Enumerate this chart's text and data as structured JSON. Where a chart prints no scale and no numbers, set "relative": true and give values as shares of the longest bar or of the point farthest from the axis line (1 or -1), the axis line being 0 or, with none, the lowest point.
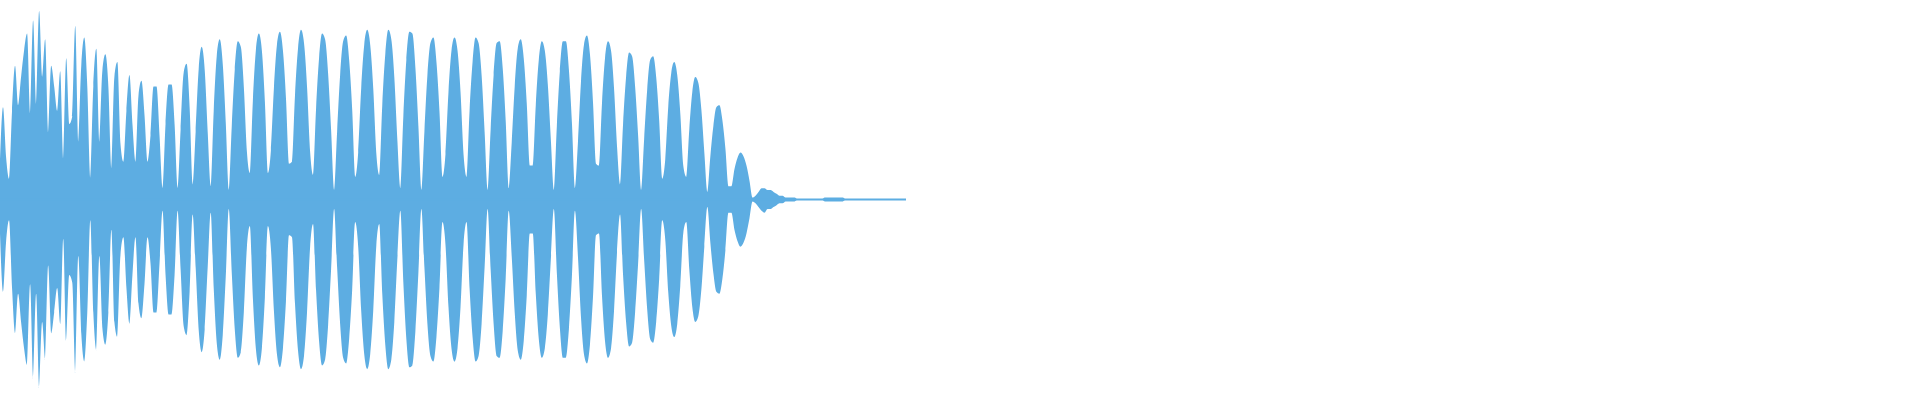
{
  "chart_data": {
    "type": "area",
    "relative": true,
    "categories": [
      null,
      null,
      null,
      null,
      null,
      null,
      null,
      null,
      null,
      null,
      null,
      null,
      null,
      null,
      null,
      null,
      null,
      null,
      null,
      null,
      null,
      null,
      null,
      null,
      null,
      null,
      null,
      null,
      null,
      null,
      null,
      null,
      null,
      null,
      null,
      null,
      null,
      null,
      null,
      null,
      null,
      null,
      null,
      null,
      null,
      null,
      null,
      null,
      null,
      null,
      null,
      null,
      null,
      null,
      null,
      null,
      null,
      null,
      null,
      null,
      null,
      null,
      null,
      null,
      null,
      null,
      null,
      null,
      null,
      null,
      null,
      null,
      null,
      null,
      null,
      null,
      null,
      null,
      null,
      null,
      null,
      null,
      null,
      null,
      null,
      null,
      null,
      null,
      null,
      null,
      null,
      null,
      null,
      null,
      null,
      null,
      null,
      null,
      null,
      null,
      null,
      null,
      null,
      null,
      null,
      null,
      null,
      null,
      null,
      null,
      null,
      null,
      null,
      null,
      null,
      null,
      null,
      null,
      null,
      null,
      null,
      null,
      null,
      null,
      null,
      null,
      null,
      null,
      null,
      null,
      null,
      null,
      null,
      null,
      null,
      null,
      null,
      null,
      null,
      null,
      null,
      null,
      null,
      null,
      null,
      null,
      null,
      null,
      null,
      null,
      null,
      null,
      null,
      null,
      null,
      null,
      null,
      null,
      null,
      null,
      null,
      null,
      null,
      null,
      null,
      null,
      null,
      null,
      null,
      null,
      null,
      null,
      null,
      null,
      null,
      null,
      null,
      null,
      null,
      null,
      null,
      null,
      null,
      null,
      null,
      null,
      null,
      null,
      null,
      null,
      null,
      null,
      null,
      null,
      null,
      null,
      null,
      null,
      null,
      null,
      null,
      null,
      null,
      null,
      null,
      null,
      null,
      null,
      null,
      null,
      null,
      null,
      null,
      null,
      null,
      null,
      null,
      null,
      null,
      null,
      null,
      null,
      null,
      null,
      null,
      null,
      null,
      null,
      null,
      null,
      null,
      null,
      null,
      null,
      null,
      null,
      null,
      null,
      null,
      null,
      null,
      null,
      null,
      null,
      null,
      null,
      null,
      null,
      null,
      null,
      null,
      null,
      null,
      null,
      null,
      null,
      null,
      null,
      null,
      null,
      null,
      null,
      null,
      null,
      null,
      null,
      null,
      null,
      null,
      null,
      null,
      null,
      null,
      null,
      null,
      null,
      null,
      null,
      null,
      null,
      null,
      null,
      null,
      null,
      null,
      null,
      null,
      null,
      null,
      null,
      null,
      null,
      null,
      null,
      null,
      null,
      null,
      null,
      null,
      null,
      null,
      null
    ],
    "series": [
      {
        "color": "#5dade2",
        "values": [
          0.18,
          0.49,
          0.23,
          0.11,
          0.47,
          0.71,
          0.5,
          0.65,
          0.79,
          0.88,
          0.45,
          0.95,
          0.5,
          1,
          0.65,
          0.85,
          0.35,
          0.71,
          0.6,
          0.47,
          0.68,
          0.21,
          0.75,
          0.4,
          0.44,
          0.92,
          0.3,
          0.71,
          0.86,
          0.6,
          0.11,
          0.6,
          0.8,
          0.3,
          0.68,
          0.77,
          0.6,
          0.16,
          0.65,
          0.73,
          0.3,
          0.2,
          0.47,
          0.66,
          0.4,
          0.2,
          0.55,
          0.63,
          0.45,
          0.2,
          0.34,
          0.6,
          0.6,
          0.34,
          0.06,
          0.4,
          0.61,
          0.61,
          0.4,
          0.06,
          0.37,
          0.67,
          0.72,
          0.49,
          0.08,
          0.36,
          0.69,
          0.81,
          0.69,
          0.36,
          0.07,
          0.47,
          0.76,
          0.85,
          0.72,
          0.41,
          0.05,
          0.39,
          0.69,
          0.84,
          0.81,
          0.6,
          0.26,
          0.14,
          0.52,
          0.79,
          0.88,
          0.79,
          0.52,
          0.14,
          0.26,
          0.59,
          0.82,
          0.89,
          0.79,
          0.54,
          0.19,
          0.2,
          0.55,
          0.8,
          0.9,
          0.83,
          0.6,
          0.26,
          0.13,
          0.48,
          0.75,
          0.88,
          0.85,
          0.67,
          0.37,
          0.05,
          0.36,
          0.66,
          0.84,
          0.87,
          0.74,
          0.48,
          0.12,
          0.25,
          0.59,
          0.82,
          0.9,
          0.82,
          0.59,
          0.25,
          0.13,
          0.5,
          0.77,
          0.9,
          0.85,
          0.65,
          0.32,
          0.06,
          0.44,
          0.74,
          0.89,
          0.88,
          0.7,
          0.39,
          0.05,
          0.36,
          0.66,
          0.83,
          0.86,
          0.73,
          0.47,
          0.12,
          0.24,
          0.57,
          0.79,
          0.86,
          0.79,
          0.57,
          0.24,
          0.12,
          0.47,
          0.73,
          0.86,
          0.83,
          0.66,
          0.36,
          0.05,
          0.37,
          0.66,
          0.83,
          0.84,
          0.7,
          0.42,
          0.06,
          0.3,
          0.6,
          0.8,
          0.85,
          0.75,
          0.51,
          0.18,
          0.18,
          0.5,
          0.74,
          0.84,
          0.79,
          0.61,
          0.32,
          0.05,
          0.39,
          0.68,
          0.84,
          0.84,
          0.69,
          0.41,
          0.06,
          0.3,
          0.62,
          0.82,
          0.87,
          0.77,
          0.52,
          0.19,
          0.18,
          0.51,
          0.75,
          0.84,
          0.79,
          0.59,
          0.28,
          0.08,
          0.4,
          0.65,
          0.78,
          0.76,
          0.6,
          0.34,
          0.05,
          0.32,
          0.58,
          0.74,
          0.76,
          0.65,
          0.42,
          0.11,
          0.21,
          0.49,
          0.67,
          0.73,
          0.66,
          0.46,
          0.18,
          0.12,
          0.37,
          0.57,
          0.65,
          0.62,
          0.48,
          0.25,
          0.04,
          0.23,
          0.39,
          0.49,
          0.5,
          0.42,
          0.27,
          0.07,
          0.07,
          0.16,
          0.22,
          0.25,
          0.23,
          0.18,
          0.1,
          0.01,
          0.02,
          0.04,
          0.06,
          0.06,
          0.05,
          0.05,
          0.04,
          0.03,
          0.02,
          0.02,
          0.01,
          0.01,
          0.01,
          0.01,
          0,
          0,
          0,
          0,
          0,
          0,
          0,
          0,
          0,
          0.01,
          0.01,
          0.01,
          0.01,
          0.01,
          0.01,
          0.01,
          0,
          0,
          0,
          0,
          0,
          0,
          0,
          0,
          0,
          0,
          0,
          0,
          0,
          0,
          0,
          0,
          0,
          0,
          0,
          0,
          0
        ]
      },
      {
        "color": "#5dade2",
        "values": [
          -0.18,
          -0.49,
          -0.23,
          -0.11,
          -0.47,
          -0.71,
          -0.5,
          -0.65,
          -0.79,
          -0.88,
          -0.45,
          -0.95,
          -0.5,
          -1,
          -0.65,
          -0.85,
          -0.35,
          -0.71,
          -0.6,
          -0.47,
          -0.66,
          -0.21,
          -0.75,
          -0.4,
          -0.44,
          -0.92,
          -0.3,
          -0.71,
          -0.86,
          -0.6,
          -0.11,
          -0.6,
          -0.8,
          -0.3,
          -0.68,
          -0.77,
          -0.6,
          -0.16,
          -0.65,
          -0.73,
          -0.3,
          -0.2,
          -0.47,
          -0.66,
          -0.4,
          -0.2,
          -0.55,
          -0.63,
          -0.45,
          -0.2,
          -0.34,
          -0.6,
          -0.6,
          -0.34,
          -0.06,
          -0.4,
          -0.61,
          -0.61,
          -0.4,
          -0.06,
          -0.37,
          -0.67,
          -0.72,
          -0.49,
          -0.08,
          -0.36,
          -0.69,
          -0.81,
          -0.69,
          -0.36,
          -0.07,
          -0.47,
          -0.76,
          -0.85,
          -0.72,
          -0.41,
          -0.05,
          -0.39,
          -0.69,
          -0.84,
          -0.81,
          -0.6,
          -0.26,
          -0.14,
          -0.52,
          -0.79,
          -0.88,
          -0.79,
          -0.52,
          -0.14,
          -0.26,
          -0.59,
          -0.82,
          -0.89,
          -0.79,
          -0.54,
          -0.19,
          -0.2,
          -0.55,
          -0.8,
          -0.9,
          -0.83,
          -0.6,
          -0.26,
          -0.13,
          -0.48,
          -0.75,
          -0.88,
          -0.85,
          -0.67,
          -0.37,
          -0.05,
          -0.36,
          -0.66,
          -0.84,
          -0.87,
          -0.74,
          -0.48,
          -0.12,
          -0.25,
          -0.59,
          -0.82,
          -0.9,
          -0.82,
          -0.59,
          -0.25,
          -0.13,
          -0.5,
          -0.77,
          -0.9,
          -0.85,
          -0.65,
          -0.32,
          -0.06,
          -0.44,
          -0.74,
          -0.89,
          -0.88,
          -0.7,
          -0.39,
          -0.05,
          -0.36,
          -0.66,
          -0.83,
          -0.86,
          -0.73,
          -0.47,
          -0.12,
          -0.24,
          -0.57,
          -0.79,
          -0.86,
          -0.79,
          -0.57,
          -0.24,
          -0.12,
          -0.47,
          -0.73,
          -0.86,
          -0.83,
          -0.66,
          -0.36,
          -0.05,
          -0.37,
          -0.66,
          -0.83,
          -0.84,
          -0.7,
          -0.42,
          -0.06,
          -0.3,
          -0.6,
          -0.8,
          -0.85,
          -0.75,
          -0.51,
          -0.18,
          -0.18,
          -0.5,
          -0.74,
          -0.84,
          -0.79,
          -0.61,
          -0.32,
          -0.05,
          -0.39,
          -0.68,
          -0.84,
          -0.84,
          -0.69,
          -0.41,
          -0.06,
          -0.3,
          -0.62,
          -0.82,
          -0.87,
          -0.77,
          -0.52,
          -0.19,
          -0.18,
          -0.51,
          -0.75,
          -0.84,
          -0.79,
          -0.59,
          -0.28,
          -0.08,
          -0.4,
          -0.65,
          -0.78,
          -0.76,
          -0.6,
          -0.34,
          -0.05,
          -0.32,
          -0.58,
          -0.74,
          -0.76,
          -0.65,
          -0.42,
          -0.11,
          -0.21,
          -0.49,
          -0.67,
          -0.73,
          -0.66,
          -0.46,
          -0.18,
          -0.12,
          -0.37,
          -0.57,
          -0.65,
          -0.62,
          -0.48,
          -0.25,
          -0.04,
          -0.23,
          -0.39,
          -0.49,
          -0.5,
          -0.42,
          -0.27,
          -0.07,
          -0.07,
          -0.16,
          -0.22,
          -0.25,
          -0.23,
          -0.18,
          -0.1,
          -0.01,
          -0.02,
          -0.04,
          -0.06,
          -0.07,
          -0.05,
          -0.05,
          -0.04,
          -0.03,
          -0.02,
          -0.02,
          -0.01,
          -0.01,
          -0.01,
          -0.01,
          0,
          0,
          0,
          0,
          0,
          0,
          0,
          0,
          0,
          -0.01,
          -0.01,
          -0.01,
          -0.01,
          -0.01,
          -0.01,
          -0.01,
          0,
          0,
          0,
          0,
          0,
          0,
          0,
          0,
          0,
          0,
          0,
          0,
          0,
          0,
          0,
          0,
          0,
          0,
          0,
          0,
          0
        ]
      }
    ],
    "ref_lines": [
      {
        "axis": "y",
        "value": 0,
        "color": "#5dade2"
      }
    ]
  }
}
